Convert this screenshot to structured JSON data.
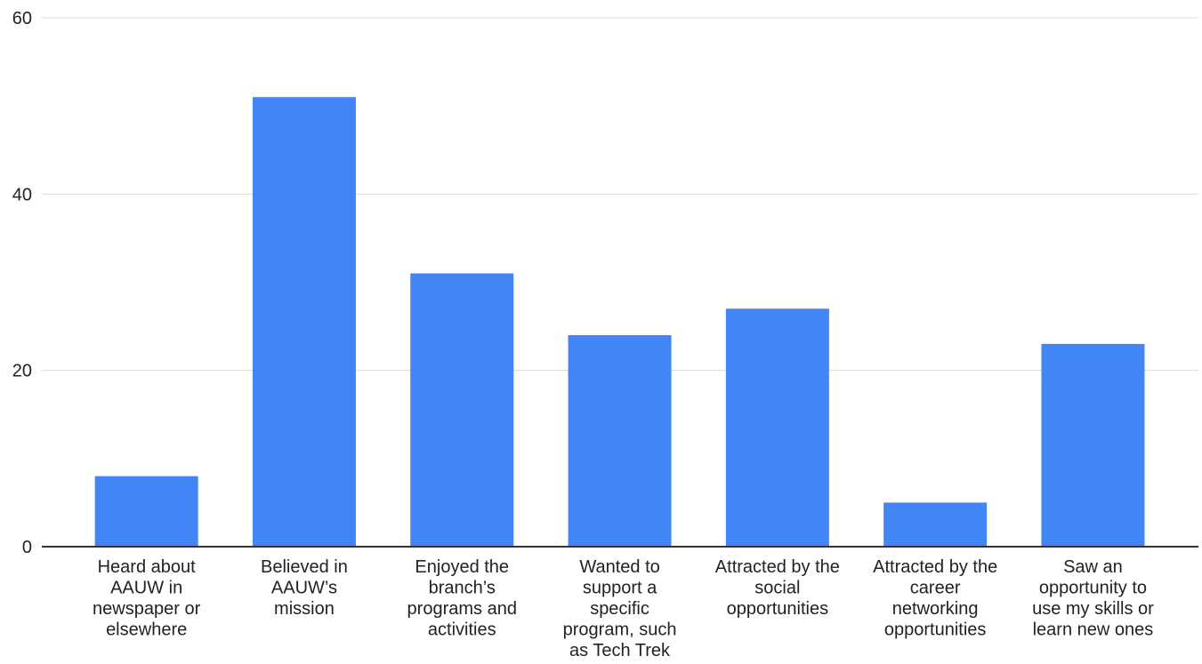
{
  "chart_data": {
    "type": "bar",
    "title": "",
    "xlabel": "",
    "ylabel": "",
    "ylim": [
      0,
      60
    ],
    "yticks": [
      0,
      20,
      40,
      60
    ],
    "grid": true,
    "legend": "none",
    "bar_color": "#4285F4",
    "categories": [
      "Heard about AAUW in newspaper or elsewhere",
      "Believed in AAUW’s mission",
      "Enjoyed the branch’s programs and activities",
      "Wanted to support a specific program, such as Tech Trek",
      "Attracted by the social opportunities",
      "Attracted by the career networking opportunities",
      "Saw an opportunity to use my skills or learn new ones"
    ],
    "category_lines": [
      [
        "Heard about",
        "AAUW in",
        "newspaper or",
        "elsewhere"
      ],
      [
        "Believed in",
        "AAUW’s",
        "mission"
      ],
      [
        "Enjoyed the",
        "branch’s",
        "programs and",
        "activities"
      ],
      [
        "Wanted to",
        "support a",
        "specific",
        "program, such",
        "as Tech Trek"
      ],
      [
        "Attracted by the",
        "social",
        "opportunities"
      ],
      [
        "Attracted by the",
        "career",
        "networking",
        "opportunities"
      ],
      [
        "Saw an",
        "opportunity to",
        "use my skills or",
        "learn new ones"
      ]
    ],
    "values": [
      8,
      51,
      31,
      24,
      27,
      5,
      23
    ]
  }
}
